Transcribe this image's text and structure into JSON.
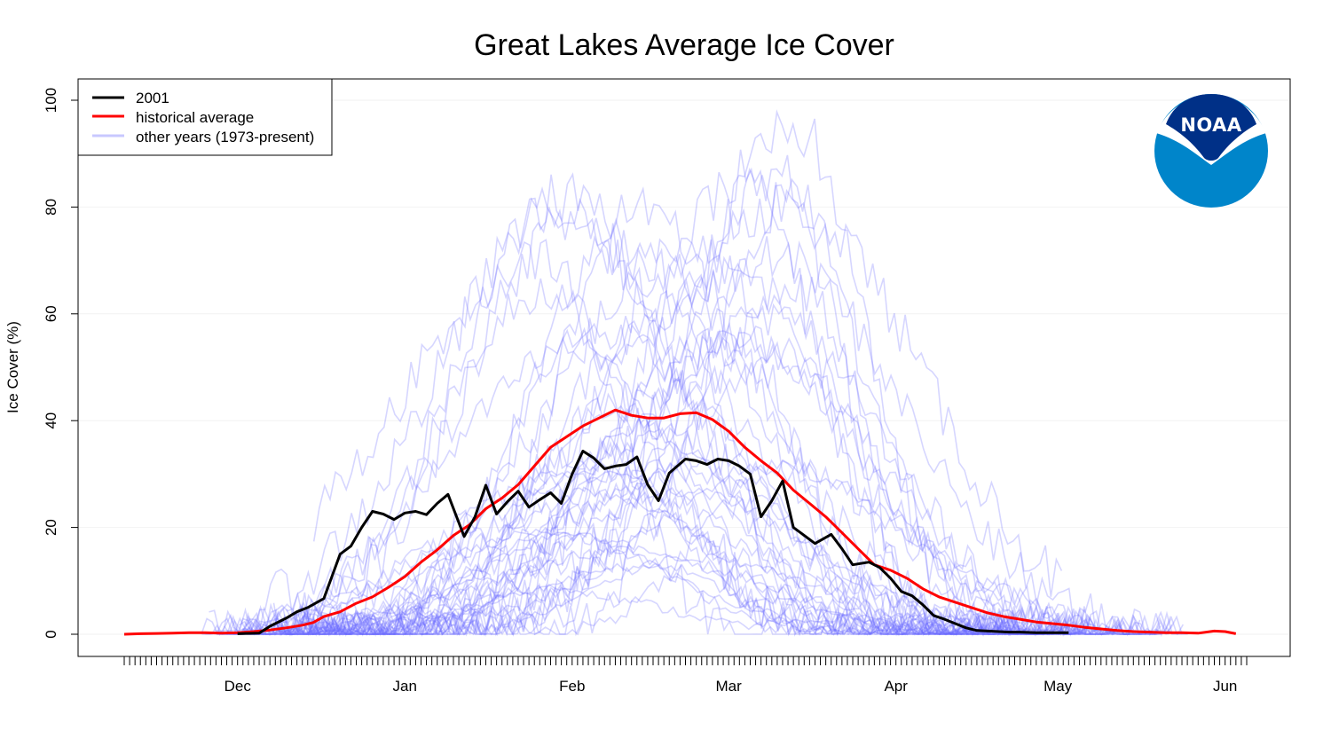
{
  "chart_data": {
    "type": "line",
    "title": "Great Lakes Average Ice Cover",
    "xlabel": "",
    "ylabel": "Ice Cover (%)",
    "ylim": [
      0,
      100
    ],
    "xlim": [
      0,
      208
    ],
    "yticks": [
      0,
      20,
      40,
      60,
      80,
      100
    ],
    "grid": true,
    "legend_position": "top-left",
    "x_ticks": [
      {
        "label": "Dec",
        "x": 21
      },
      {
        "label": "Jan",
        "x": 52
      },
      {
        "label": "Feb",
        "x": 83
      },
      {
        "label": "Mar",
        "x": 112
      },
      {
        "label": "Apr",
        "x": 143
      },
      {
        "label": "May",
        "x": 173
      },
      {
        "label": "Jun",
        "x": 204
      }
    ],
    "legend": [
      {
        "label": "2001",
        "color": "#000000"
      },
      {
        "label": "historical average",
        "color": "#ff0000"
      },
      {
        "label": "other years (1973-present)",
        "color": "#b0b0ff"
      }
    ],
    "series": [
      {
        "name": "2001",
        "color": "#000000",
        "x": [
          21,
          25,
          27,
          30,
          32,
          34,
          37,
          40,
          42,
          44,
          46,
          48,
          50,
          52,
          54,
          56,
          58,
          60,
          63,
          65,
          67,
          69,
          71,
          73,
          75,
          77,
          79,
          81,
          83,
          85,
          87,
          89,
          91,
          93,
          95,
          97,
          99,
          101,
          104,
          106,
          108,
          110,
          112,
          114,
          116,
          118,
          120,
          122,
          124,
          126,
          128,
          131,
          133,
          135,
          138,
          140,
          142,
          144,
          146,
          148,
          150,
          152,
          154,
          156,
          158,
          160,
          162,
          164,
          166,
          169,
          171,
          173,
          175
        ],
        "y": [
          0.1,
          0.2,
          1.5,
          3,
          4.2,
          5.0,
          6.7,
          15,
          16.5,
          20,
          23,
          22.5,
          21.5,
          22.7,
          23,
          22.4,
          24.5,
          26.2,
          18.3,
          22,
          27.9,
          22.5,
          24.8,
          26.8,
          23.8,
          25.2,
          26.5,
          24.5,
          30,
          34.3,
          33,
          31,
          31.5,
          31.8,
          33.2,
          28,
          25,
          30.2,
          32.8,
          32.5,
          31.8,
          32.8,
          32.5,
          31.5,
          30,
          22,
          25,
          28.7,
          20,
          18.5,
          17,
          18.7,
          16,
          13,
          13.5,
          12.5,
          10.5,
          8,
          7.2,
          5.5,
          3.5,
          2.8,
          2,
          1.2,
          0.7,
          0.6,
          0.5,
          0.4,
          0.4,
          0.3,
          0.3,
          0.3,
          0.3
        ]
      },
      {
        "name": "historical average",
        "color": "#ff0000",
        "x": [
          0,
          3,
          6,
          9,
          12,
          15,
          18,
          21,
          24,
          27,
          30,
          33,
          35,
          37,
          40,
          43,
          46,
          49,
          52,
          55,
          58,
          61,
          64,
          67,
          70,
          73,
          76,
          79,
          82,
          85,
          88,
          91,
          94,
          97,
          100,
          103,
          106,
          109,
          112,
          115,
          118,
          121,
          124,
          127,
          130,
          133,
          136,
          139,
          142,
          145,
          148,
          151,
          154,
          157,
          160,
          163,
          166,
          169,
          172,
          175,
          178,
          181,
          184,
          187,
          190,
          193,
          196,
          199,
          202,
          204,
          206
        ],
        "y": [
          0,
          0.1,
          0.15,
          0.2,
          0.3,
          0.3,
          0.2,
          0.3,
          0.5,
          0.8,
          1.2,
          1.7,
          2.2,
          3.3,
          4.2,
          5.8,
          7.0,
          8.8,
          10.8,
          13.5,
          15.8,
          18.5,
          20.5,
          23.5,
          25.5,
          28.0,
          31.5,
          35.0,
          37.0,
          39.0,
          40.5,
          42.0,
          41.0,
          40.5,
          40.5,
          41.3,
          41.5,
          40.2,
          38.0,
          35.0,
          32.5,
          30.2,
          27.0,
          24.5,
          22.0,
          19.0,
          16.0,
          13.0,
          12.0,
          10.5,
          8.5,
          7.0,
          6.0,
          5.0,
          4.0,
          3.3,
          2.8,
          2.3,
          2.0,
          1.7,
          1.3,
          1.0,
          0.7,
          0.5,
          0.4,
          0.3,
          0.3,
          0.2,
          0.6,
          0.5,
          0.1
        ]
      }
    ],
    "other_years_envelope": {
      "name": "other years (1973-present)",
      "count": 45,
      "peak_x_range": [
        76,
        125
      ],
      "peak_y_range": [
        5,
        94.5
      ]
    }
  },
  "logo": {
    "text": "NOAA",
    "outer_color": "#0085ca",
    "inner_color": "#003087"
  }
}
